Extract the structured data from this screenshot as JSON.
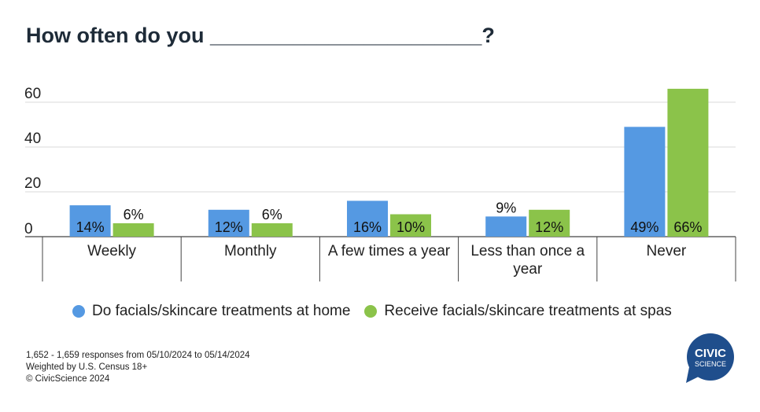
{
  "title": "How often do you _______________________?",
  "chart_data": {
    "type": "bar",
    "categories": [
      [
        "Weekly"
      ],
      [
        "Monthly"
      ],
      [
        "A few times a year"
      ],
      [
        "Less than once a",
        "year"
      ],
      [
        "Never"
      ]
    ],
    "series": [
      {
        "name": "Do facials/skincare treatments at home",
        "color": "#5599e2",
        "values": [
          14,
          12,
          16,
          9,
          49
        ],
        "labels": [
          "14%",
          "12%",
          "16%",
          "9%",
          "49%"
        ]
      },
      {
        "name": "Receive facials/skincare treatments at spas",
        "color": "#8bc34a",
        "values": [
          6,
          6,
          10,
          12,
          66
        ],
        "labels": [
          "6%",
          "6%",
          "10%",
          "12%",
          "66%"
        ]
      }
    ],
    "yticks": [
      0,
      20,
      40,
      60
    ],
    "ylim": [
      0,
      65
    ],
    "grid": true,
    "legend_position": "bottom"
  },
  "legend": {
    "items": [
      {
        "label": "Do facials/skincare treatments at home",
        "color": "#5599e2"
      },
      {
        "label": "Receive facials/skincare treatments at spas",
        "color": "#8bc34a"
      }
    ]
  },
  "footer": {
    "line1": "1,652 - 1,659 responses from 05/10/2024 to 05/14/2024",
    "line2": "Weighted by U.S. Census 18+",
    "line3": "© CivicScience 2024"
  },
  "logo": {
    "line1": "CIVIC",
    "line2": "SCIENCE",
    "color": "#1f4e8c"
  }
}
